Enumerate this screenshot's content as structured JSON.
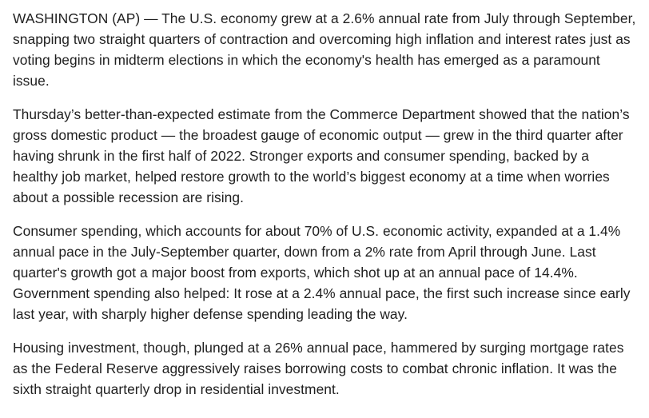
{
  "article": {
    "paragraphs": [
      "WASHINGTON (AP) — The U.S. economy grew at a 2.6% annual rate from July through September, snapping two straight quarters of contraction and overcoming high inflation and interest rates just as voting begins in midterm elections in which the economy's health has emerged as a paramount issue.",
      "Thursday’s better-than-expected estimate from the Commerce Department showed that the nation’s gross domestic product — the broadest gauge of economic output — grew in the third quarter after having shrunk in the first half of 2022. Stronger exports and consumer spending, backed by a healthy job market, helped restore growth to the world’s biggest economy at a time when worries about a possible recession are rising.",
      "Consumer spending, which accounts for about 70% of U.S. economic activity, expanded at a 1.4% annual pace in the July-September quarter, down from a 2% rate from April through June. Last quarter's growth got a major boost from exports, which shot up at an annual pace of 14.4%. Government spending also helped: It rose at a 2.4% annual pace, the first such increase since early last year, with sharply higher defense spending leading the way.",
      "Housing investment, though, plunged at a 26% annual pace, hammered by surging mortgage rates as the Federal Reserve aggressively raises borrowing costs to combat chronic inflation. It was the sixth straight quarterly drop in residential investment."
    ]
  }
}
